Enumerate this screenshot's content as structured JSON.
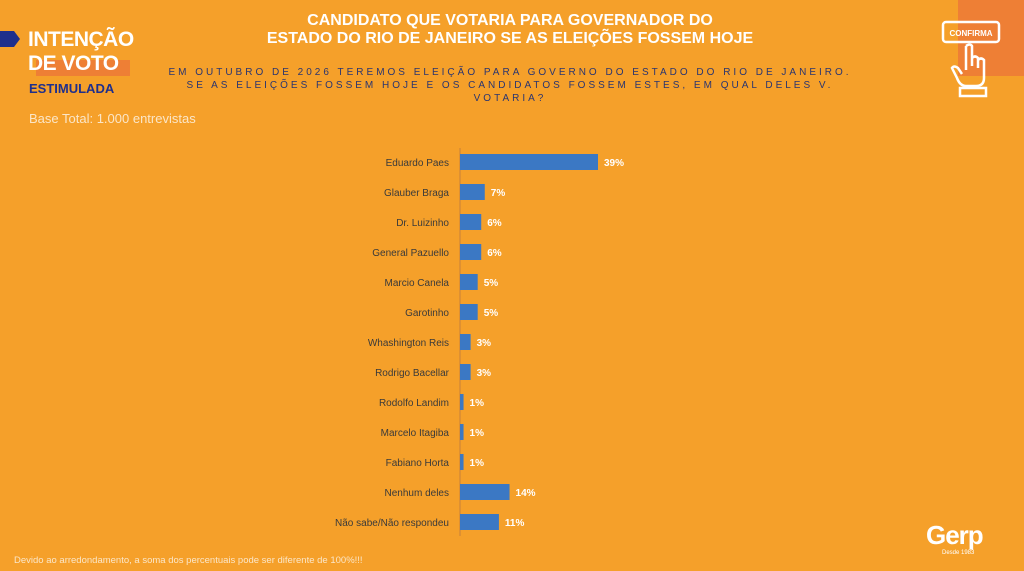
{
  "header": {
    "section_line1": "INTENÇÃO",
    "section_line2": "DE VOTO",
    "subsection": "ESTIMULADA",
    "base": "Base Total: 1.000 entrevistas",
    "title_line1": "CANDIDATO QUE VOTARIA PARA GOVERNADOR DO",
    "title_line2": "ESTADO DO RIO DE JANEIRO SE AS ELEIÇÕES FOSSEM HOJE",
    "question": "EM OUTUBRO DE 2026 TEREMOS ELEIÇÃO PARA GOVERNO DO ESTADO DO RIO DE JANEIRO. SE AS ELEIÇÕES FOSSEM HOJE E OS CANDIDATOS FOSSEM ESTES, EM QUAL DELES V. VOTARIA?",
    "button_label": "CONFIRMA"
  },
  "footer": {
    "note": "Devido ao arredondamento, a soma dos percentuais pode ser diferente de 100%!!!",
    "logo": "Gerp",
    "logo_sub": "Desde 1983"
  },
  "colors": {
    "background": "#F5A02A",
    "bar": "#3B78C4",
    "accent": "#EE7F35",
    "navy": "#1F2F8C"
  },
  "chart_data": {
    "type": "bar",
    "orientation": "horizontal",
    "categories": [
      "Eduardo Paes",
      "Glauber Braga",
      "Dr. Luizinho",
      "General Pazuello",
      "Marcio Canela",
      "Garotinho",
      "Whashington Reis",
      "Rodrigo Bacellar",
      "Rodolfo Landim",
      "Marcelo Itagiba",
      "Fabiano Horta",
      "Nenhum deles",
      "Não sabe/Não respondeu"
    ],
    "values": [
      39,
      7,
      6,
      6,
      5,
      5,
      3,
      3,
      1,
      1,
      1,
      14,
      11
    ],
    "labels": [
      "39%",
      "7%",
      "6%",
      "6%",
      "5%",
      "5%",
      "3%",
      "3%",
      "1%",
      "1%",
      "1%",
      "14%",
      "11%"
    ]
  }
}
